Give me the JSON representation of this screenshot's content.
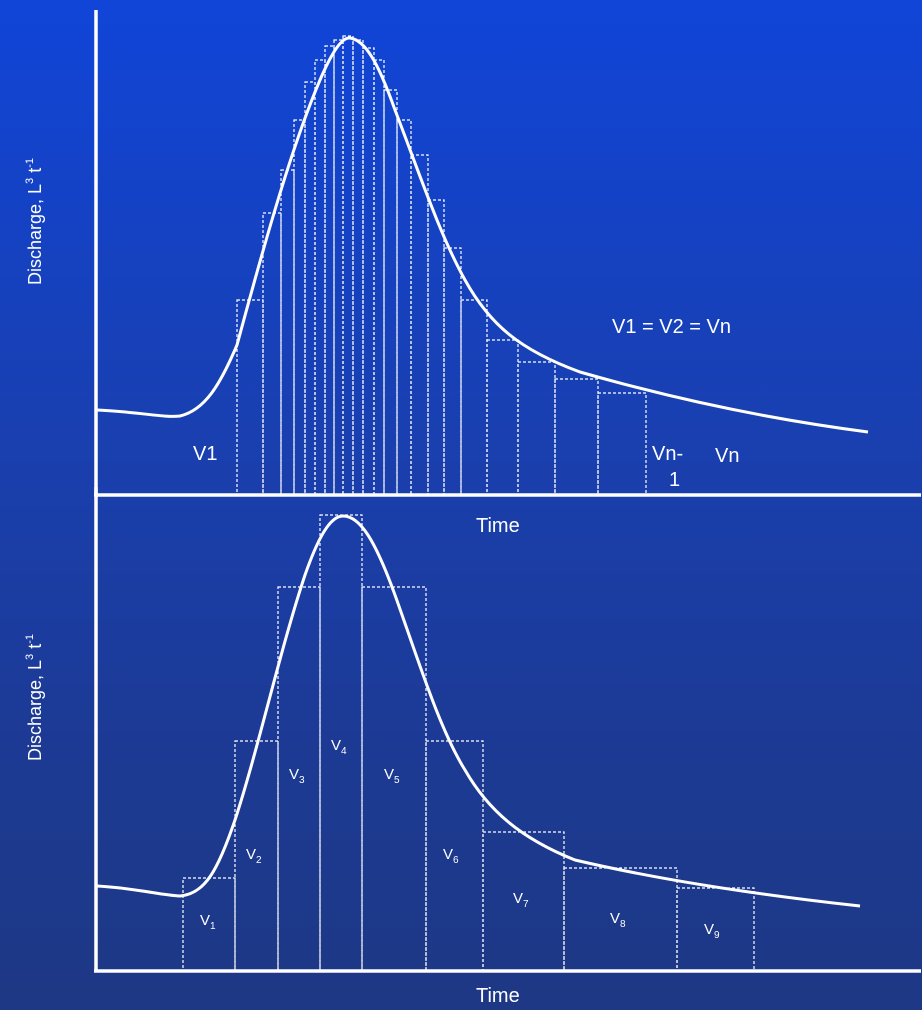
{
  "top_panel": {
    "y_axis_label": "Discharge, L",
    "y_axis_exp1": "3",
    "y_axis_mid": " t",
    "y_axis_exp2": "-1",
    "x_axis_label": "Time",
    "equation": "V1 = V2 = Vn",
    "label_v1": "V1",
    "label_vn1_a": "Vn-",
    "label_vn1_b": "1",
    "label_vn": "Vn"
  },
  "bottom_panel": {
    "y_axis_label": "Discharge, L",
    "y_axis_exp1": "3",
    "y_axis_mid": " t",
    "y_axis_exp2": "-1",
    "x_axis_label": "Time",
    "volume_labels": [
      {
        "base": "V",
        "sub": "1"
      },
      {
        "base": "V",
        "sub": "2"
      },
      {
        "base": "V",
        "sub": "3"
      },
      {
        "base": "V",
        "sub": "4"
      },
      {
        "base": "V",
        "sub": "5"
      },
      {
        "base": "V",
        "sub": "6"
      },
      {
        "base": "V",
        "sub": "7"
      },
      {
        "base": "V",
        "sub": "8"
      },
      {
        "base": "V",
        "sub": "9"
      }
    ]
  },
  "colors": {
    "line": "#ffffff",
    "background_top": "#1045d8",
    "background_bottom": "#1e3885"
  }
}
